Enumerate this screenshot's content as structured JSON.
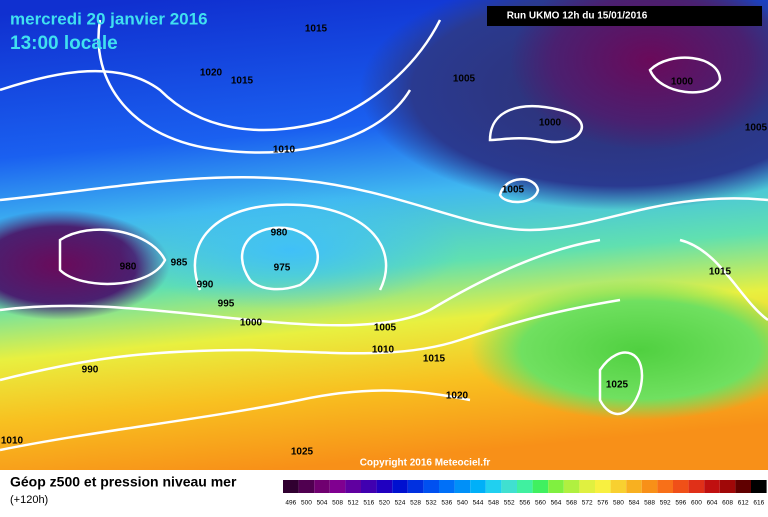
{
  "header": {
    "date": "mercredi 20 janvier 2016",
    "time": "13:00 locale",
    "run": "Run UKMO 12h du 15/01/2016"
  },
  "isobar_labels": [
    "1015",
    "1020",
    "1015",
    "1005",
    "1000",
    "1000",
    "1005",
    "1010",
    "1005",
    "980",
    "975",
    "980",
    "985",
    "990",
    "995",
    "1000",
    "1005",
    "1010",
    "1015",
    "1015",
    "1020",
    "1025",
    "990",
    "1010",
    "1025"
  ],
  "copyright": "Copyright 2016 Meteociel.fr",
  "legend": {
    "title": "Géop z500 et pression niveau mer",
    "subtitle": "(+120h)",
    "scale": [
      496,
      500,
      504,
      508,
      512,
      516,
      520,
      524,
      528,
      532,
      536,
      540,
      544,
      548,
      552,
      556,
      560,
      564,
      568,
      572,
      576,
      580,
      584,
      588,
      592,
      596,
      600,
      604,
      608,
      612,
      616
    ]
  }
}
